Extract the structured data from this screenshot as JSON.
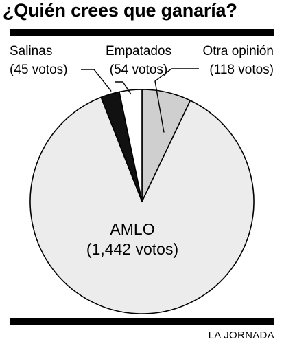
{
  "title": "¿Quién crees que ganaría?",
  "credit": "LA JORNADA",
  "colors": {
    "amlo": "#ececec",
    "otra": "#cfcfcf",
    "empatados": "#ffffff",
    "salinas": "#111111",
    "stroke": "#000000"
  },
  "chart_data": {
    "type": "pie",
    "title": "¿Quién crees que ganaría?",
    "slices": [
      {
        "name": "AMLO",
        "value": 1442,
        "value_label": "(1,442 votos)"
      },
      {
        "name": "Salinas",
        "value": 45,
        "value_label": "(45 votos)"
      },
      {
        "name": "Empatados",
        "value": 54,
        "value_label": "(54 votos)"
      },
      {
        "name": "Otra opinión",
        "value": 118,
        "value_label": "(118 votos)"
      }
    ]
  }
}
